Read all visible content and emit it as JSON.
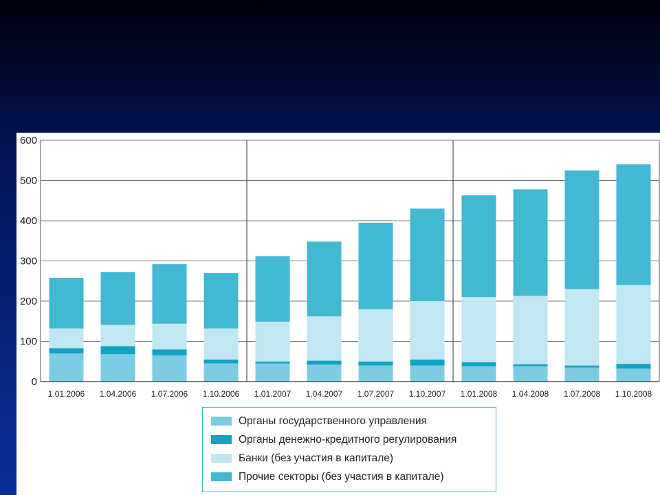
{
  "chart_data": {
    "type": "bar",
    "stacked": true,
    "categories": [
      "1.01.2006",
      "1.04.2006",
      "1.07.2006",
      "1.10.2006",
      "1.01.2007",
      "1.04.2007",
      "1.07.2007",
      "1.10.2007",
      "1.01.2008",
      "1.04.2008",
      "1.07.2008",
      "1.10.2008"
    ],
    "ylim": [
      0,
      600
    ],
    "yticks": [
      0,
      100,
      200,
      300,
      400,
      500,
      600
    ],
    "grid": true,
    "series": [
      {
        "name": "Органы государственного управления",
        "color": "#7ccde4",
        "values": [
          70,
          68,
          65,
          45,
          45,
          42,
          40,
          40,
          38,
          38,
          35,
          32
        ]
      },
      {
        "name": "Органы денежно-кредитного регулирования",
        "color": "#12a2c2",
        "values": [
          13,
          20,
          15,
          10,
          5,
          10,
          10,
          15,
          10,
          5,
          5,
          12
        ]
      },
      {
        "name": "Банки (без участия в капитале)",
        "color": "#c0e7f2",
        "values": [
          49,
          53,
          64,
          77,
          99,
          110,
          130,
          145,
          162,
          170,
          190,
          196
        ]
      },
      {
        "name": "Прочие секторы (без участия в капитале)",
        "color": "#43b8d3",
        "values": [
          126,
          131,
          148,
          138,
          163,
          186,
          215,
          230,
          253,
          265,
          295,
          300
        ]
      }
    ]
  },
  "legend": {
    "items": [
      {
        "label": "Органы государственного управления",
        "color": "#7ccde4"
      },
      {
        "label": "Органы денежно-кредитного регулирования",
        "color": "#12a2c2"
      },
      {
        "label": "Банки (без участия в капитале)",
        "color": "#c0e7f2"
      },
      {
        "label": "Прочие секторы (без участия в капитале)",
        "color": "#43b8d3"
      }
    ]
  }
}
